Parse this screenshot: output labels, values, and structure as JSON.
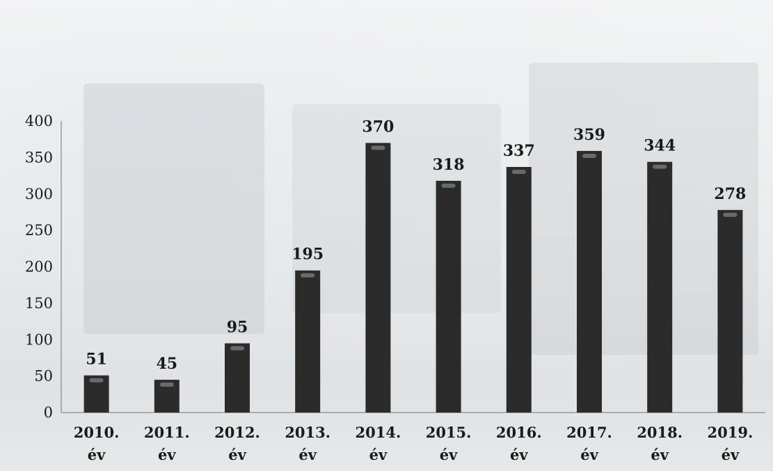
{
  "chart_data": {
    "type": "bar",
    "categories": [
      [
        "2010.",
        "év"
      ],
      [
        "2011.",
        "év"
      ],
      [
        "2012.",
        "év"
      ],
      [
        "2013.",
        "év"
      ],
      [
        "2014.",
        "év"
      ],
      [
        "2015.",
        "év"
      ],
      [
        "2016.",
        "év"
      ],
      [
        "2017.",
        "év"
      ],
      [
        "2018.",
        "év"
      ],
      [
        "2019.",
        "év"
      ]
    ],
    "values": [
      51,
      45,
      95,
      195,
      370,
      318,
      337,
      359,
      344,
      278
    ],
    "data_labels": [
      "51",
      "45",
      "95",
      "195",
      "370",
      "318",
      "337",
      "359",
      "344",
      "278"
    ],
    "y_ticks": [
      "0",
      "50",
      "100",
      "150",
      "200",
      "250",
      "300",
      "350",
      "400"
    ],
    "ylim": [
      0,
      400
    ],
    "title": "",
    "xlabel": "",
    "ylabel": "",
    "grid": false,
    "legend": "none",
    "colors": {
      "bar": "#2b2b2b",
      "bar_highlight": "#6a6a6a",
      "text": "#1a1a1a",
      "axis": "#9a9a9a"
    }
  }
}
